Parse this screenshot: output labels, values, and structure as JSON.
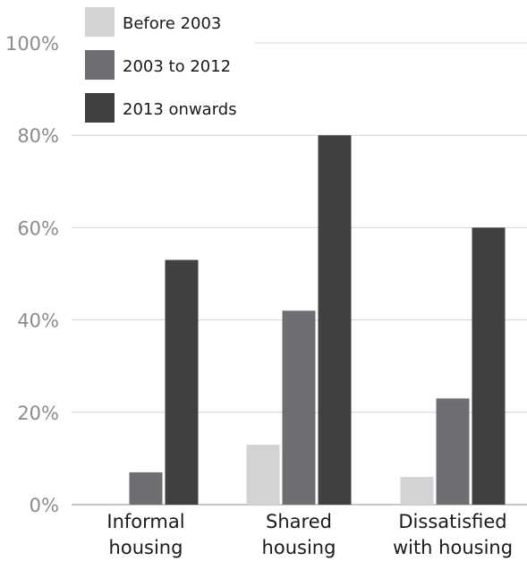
{
  "chart_data": {
    "type": "bar",
    "categories": [
      [
        "Informal",
        "housing"
      ],
      [
        "Shared",
        "housing"
      ],
      [
        "Dissatisfied",
        "with housing"
      ]
    ],
    "series": [
      {
        "name": "Before 2003",
        "color": "#d3d3d3",
        "values": [
          0,
          13,
          6
        ]
      },
      {
        "name": "2003 to 2012",
        "color": "#6d6e71",
        "values": [
          7,
          42,
          23
        ]
      },
      {
        "name": "2013 onwards",
        "color": "#414042",
        "values": [
          53,
          80,
          60
        ]
      }
    ],
    "y_ticks": [
      "0%",
      "20%",
      "40%",
      "60%",
      "80%",
      "100%"
    ],
    "ylim": [
      0,
      100
    ],
    "grid": true,
    "legend_position": "top-left"
  }
}
